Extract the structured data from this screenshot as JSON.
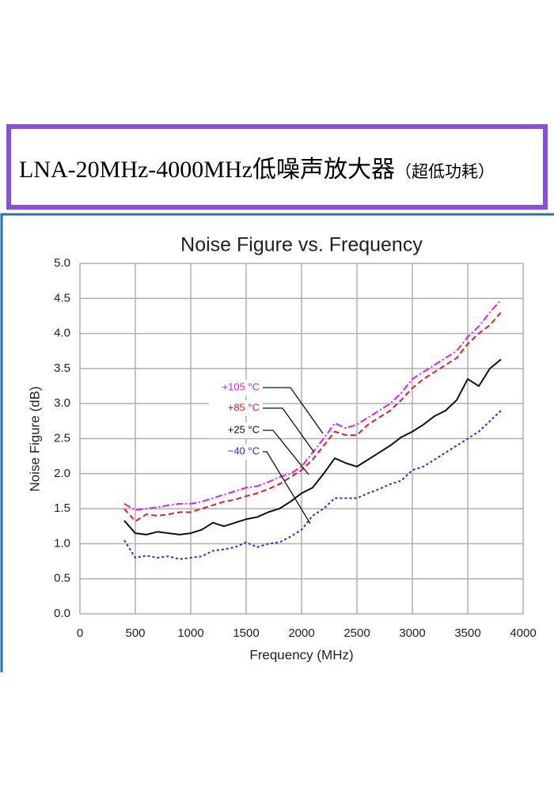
{
  "header": {
    "title": "LNA-20MHz-4000MHz低噪声放大器",
    "subtitle": "（超低功耗）"
  },
  "chart_data": {
    "type": "line",
    "title": "Noise Figure vs. Frequency",
    "x_label": "Frequency (MHz)",
    "y_label": "Noise Figure (dB)",
    "x": [
      400,
      500,
      600,
      700,
      800,
      900,
      1000,
      1100,
      1200,
      1300,
      1400,
      1500,
      1600,
      1700,
      1800,
      1900,
      2000,
      2100,
      2200,
      2300,
      2400,
      2500,
      2600,
      2700,
      2800,
      2900,
      3000,
      3100,
      3200,
      3300,
      3400,
      3500,
      3600,
      3700,
      3800
    ],
    "series": [
      {
        "name": "+105 °C",
        "color": "#e020e0",
        "dash": "9,3,2,3",
        "values": [
          1.57,
          1.48,
          1.5,
          1.52,
          1.55,
          1.57,
          1.57,
          1.6,
          1.65,
          1.7,
          1.75,
          1.8,
          1.82,
          1.88,
          1.95,
          2.0,
          2.1,
          2.3,
          2.5,
          2.72,
          2.65,
          2.7,
          2.8,
          2.9,
          3.0,
          3.15,
          3.35,
          3.45,
          3.55,
          3.65,
          3.75,
          3.95,
          4.1,
          4.3,
          4.48
        ]
      },
      {
        "name": "+85 °C",
        "color": "#e02020",
        "dash": "7,4",
        "values": [
          1.5,
          1.32,
          1.42,
          1.4,
          1.42,
          1.45,
          1.45,
          1.5,
          1.55,
          1.6,
          1.63,
          1.68,
          1.72,
          1.78,
          1.85,
          1.95,
          2.05,
          2.2,
          2.4,
          2.6,
          2.55,
          2.55,
          2.7,
          2.8,
          2.9,
          3.05,
          3.22,
          3.35,
          3.45,
          3.55,
          3.65,
          3.85,
          4.0,
          4.12,
          4.3
        ]
      },
      {
        "name": "+25 °C",
        "color": "#111111",
        "dash": "none",
        "values": [
          1.33,
          1.15,
          1.13,
          1.17,
          1.15,
          1.13,
          1.15,
          1.2,
          1.3,
          1.25,
          1.3,
          1.35,
          1.38,
          1.45,
          1.5,
          1.6,
          1.72,
          1.8,
          2.0,
          2.22,
          2.15,
          2.1,
          2.2,
          2.3,
          2.4,
          2.52,
          2.6,
          2.7,
          2.82,
          2.9,
          3.05,
          3.35,
          3.25,
          3.5,
          3.63
        ]
      },
      {
        "name": "−40 °C",
        "color": "#2a2ad8",
        "dash": "3,3",
        "values": [
          1.05,
          0.8,
          0.83,
          0.8,
          0.82,
          0.78,
          0.8,
          0.82,
          0.9,
          0.92,
          0.95,
          1.02,
          0.95,
          1.0,
          1.02,
          1.1,
          1.2,
          1.4,
          1.5,
          1.65,
          1.65,
          1.65,
          1.72,
          1.78,
          1.85,
          1.9,
          2.05,
          2.1,
          2.2,
          2.3,
          2.4,
          2.5,
          2.6,
          2.75,
          2.9
        ]
      }
    ],
    "xlim": [
      0,
      4000
    ],
    "xticks": [
      0,
      500,
      1000,
      1500,
      2000,
      2500,
      3000,
      3500,
      4000
    ],
    "ylim": [
      0,
      5
    ],
    "yticks": [
      {
        "value": 0,
        "label": "0.0"
      },
      0.5,
      {
        "value": 1,
        "label": "1.0"
      },
      1.5,
      {
        "value": 2,
        "label": "2.0"
      },
      2.5,
      {
        "value": 3,
        "label": "3.0"
      },
      3.5,
      {
        "value": 4,
        "label": "4.0"
      },
      4.5,
      {
        "value": 5,
        "label": "5.0"
      }
    ],
    "grid": true
  }
}
